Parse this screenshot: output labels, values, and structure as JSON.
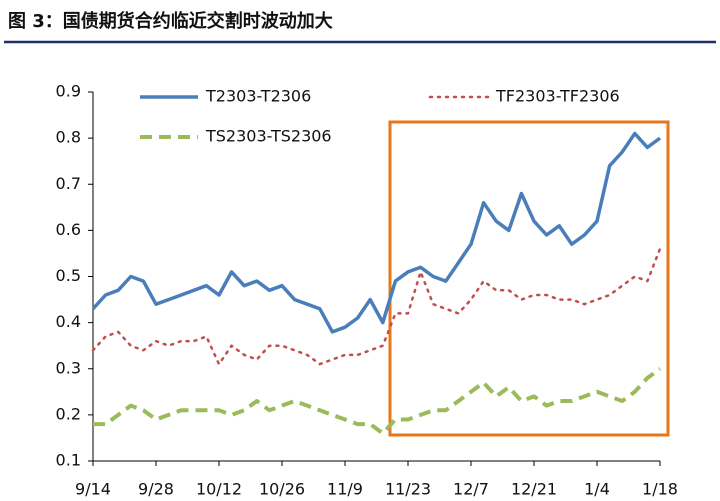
{
  "chart_data": {
    "type": "line",
    "title": "图 3：国债期货合约临近交割时波动加大",
    "categories": [
      "9/14",
      null,
      null,
      null,
      null,
      "9/28",
      null,
      null,
      null,
      null,
      "10/12",
      null,
      null,
      null,
      null,
      "10/26",
      null,
      null,
      null,
      null,
      "11/9",
      null,
      null,
      null,
      null,
      "11/23",
      null,
      null,
      null,
      null,
      "12/7",
      null,
      null,
      null,
      null,
      "12/21",
      null,
      null,
      null,
      null,
      "1/4",
      null,
      null,
      null,
      null,
      "1/18"
    ],
    "series": [
      {
        "name": "T2303-T2306",
        "color": "#4a7ebb",
        "style": "solid",
        "values": [
          0.43,
          0.46,
          0.47,
          0.5,
          0.49,
          0.44,
          0.45,
          0.46,
          0.47,
          0.48,
          0.46,
          0.51,
          0.48,
          0.49,
          0.47,
          0.48,
          0.45,
          0.44,
          0.43,
          0.38,
          0.39,
          0.41,
          0.45,
          0.4,
          0.49,
          0.51,
          0.52,
          0.5,
          0.49,
          0.53,
          0.57,
          0.66,
          0.62,
          0.6,
          0.68,
          0.62,
          0.59,
          0.61,
          0.57,
          0.59,
          0.62,
          0.74,
          0.77,
          0.81,
          0.78,
          0.8
        ]
      },
      {
        "name": "TF2303-TF2306",
        "color": "#c0504d",
        "style": "dotted",
        "values": [
          0.34,
          0.37,
          0.38,
          0.35,
          0.34,
          0.36,
          0.35,
          0.36,
          0.36,
          0.37,
          0.31,
          0.35,
          0.33,
          0.32,
          0.35,
          0.35,
          0.34,
          0.33,
          0.31,
          0.32,
          0.33,
          0.33,
          0.34,
          0.35,
          0.42,
          0.42,
          0.51,
          0.44,
          0.43,
          0.42,
          0.45,
          0.49,
          0.47,
          0.47,
          0.45,
          0.46,
          0.46,
          0.45,
          0.45,
          0.44,
          0.45,
          0.46,
          0.48,
          0.5,
          0.49,
          0.56
        ]
      },
      {
        "name": "TS2303-TS2306",
        "color": "#9bbb59",
        "style": "dashed",
        "values": [
          0.18,
          0.18,
          0.2,
          0.22,
          0.21,
          0.19,
          0.2,
          0.21,
          0.21,
          0.21,
          0.21,
          0.2,
          0.21,
          0.23,
          0.21,
          0.22,
          0.23,
          0.22,
          0.21,
          0.2,
          0.19,
          0.18,
          0.18,
          0.16,
          0.19,
          0.19,
          0.2,
          0.21,
          0.21,
          0.23,
          0.25,
          0.27,
          0.24,
          0.26,
          0.23,
          0.24,
          0.22,
          0.23,
          0.23,
          0.24,
          0.25,
          0.24,
          0.23,
          0.25,
          0.28,
          0.3
        ]
      }
    ],
    "ylim": [
      0.1,
      0.9
    ],
    "yticks": [
      0.1,
      0.2,
      0.3,
      0.4,
      0.5,
      0.6,
      0.7,
      0.8,
      0.9
    ],
    "grid": false
  }
}
